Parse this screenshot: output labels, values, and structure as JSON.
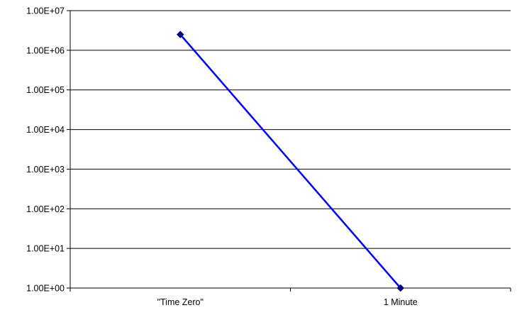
{
  "chart_data": {
    "type": "line",
    "title": "",
    "xlabel": "",
    "ylabel": "",
    "categories": [
      "\"Time Zero\"",
      "1 Minute"
    ],
    "y_scale": "log10",
    "ylim": [
      1,
      10000000
    ],
    "y_tick_values": [
      1,
      10,
      100,
      1000,
      10000,
      100000,
      1000000,
      10000000
    ],
    "y_tick_labels": [
      "1.00E+00",
      "1.00E+01",
      "1.00E+02",
      "1.00E+03",
      "1.00E+04",
      "1.00E+05",
      "1.00E+06",
      "1.00E+07"
    ],
    "grid": true,
    "legend": "none",
    "series": [
      {
        "values": [
          2500000,
          1
        ],
        "line_color": "#0000ff",
        "marker_color": "#000080",
        "marker": "diamond"
      }
    ]
  }
}
